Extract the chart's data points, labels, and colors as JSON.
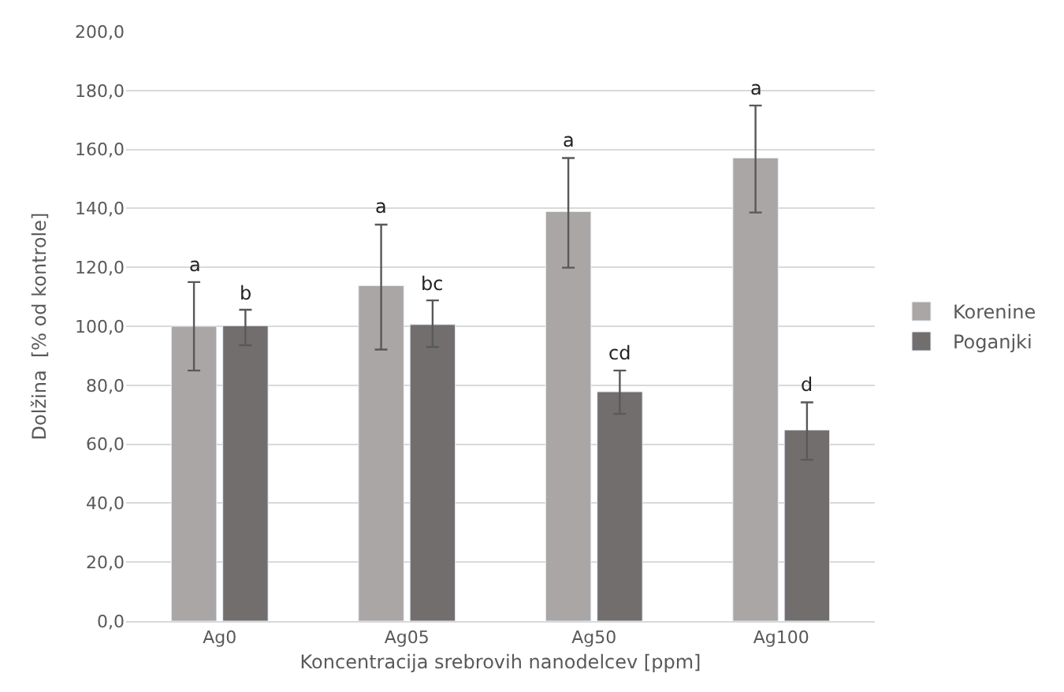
{
  "chart_data": {
    "type": "bar",
    "xlabel": "Koncentracija srebrovih nanodelcev [ppm]",
    "ylabel": "Dolžina  [% od kontrole]",
    "categories": [
      "Ag0",
      "Ag05",
      "Ag50",
      "Ag100"
    ],
    "series": [
      {
        "name": "Korenine",
        "color": "#aaa6a5",
        "values": [
          100.0,
          113.8,
          138.9,
          157.1
        ],
        "errors": [
          [
            85.0,
            115.0
          ],
          [
            92.1,
            134.5
          ],
          [
            119.9,
            157.1
          ],
          [
            138.6,
            174.9
          ]
        ]
      },
      {
        "name": "Poganjki",
        "color": "#736e6e",
        "values": [
          100.2,
          100.6,
          77.8,
          64.8
        ],
        "errors": [
          [
            93.6,
            105.6
          ],
          [
            93.0,
            108.8
          ],
          [
            70.3,
            85.0
          ],
          [
            54.7,
            74.2
          ]
        ]
      }
    ],
    "annotations": [
      "a",
      "b",
      "a",
      "bc",
      "a",
      "cd",
      "a",
      "d"
    ],
    "ylim": [
      0,
      200
    ],
    "yticks": [
      {
        "value": 0,
        "label": "0,0"
      },
      {
        "value": 20,
        "label": "20,0"
      },
      {
        "value": 40,
        "label": "40,0"
      },
      {
        "value": 60,
        "label": "60,0"
      },
      {
        "value": 80,
        "label": "80,0"
      },
      {
        "value": 100,
        "label": "100,0"
      },
      {
        "value": 120,
        "label": "120,0"
      },
      {
        "value": 140,
        "label": "140,0"
      },
      {
        "value": 160,
        "label": "160,0"
      },
      {
        "value": 180,
        "label": "180,0"
      },
      {
        "value": 200,
        "label": "200,0"
      }
    ],
    "grid": "y",
    "legend": "right"
  }
}
